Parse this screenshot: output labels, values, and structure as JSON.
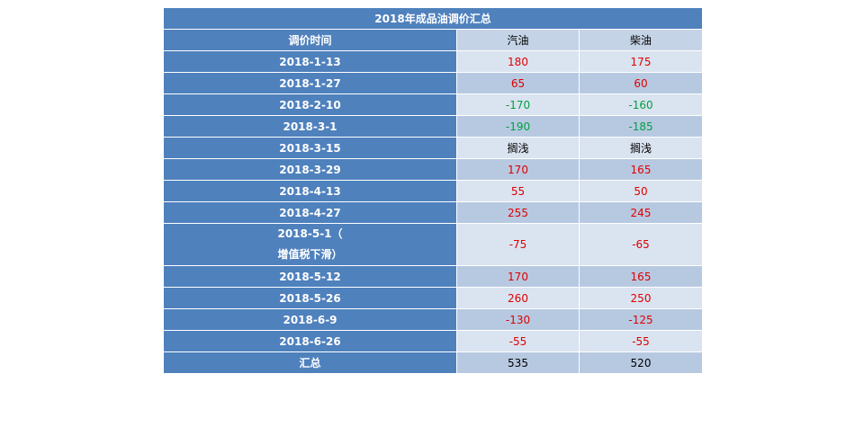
{
  "table": {
    "title": "2018年成品油调价汇总",
    "headers": [
      "调价时间",
      "汽油",
      "柴油"
    ],
    "rows": [
      {
        "date": "2018-1-13",
        "gasoline": "180",
        "diesel": "175",
        "tone": "pos"
      },
      {
        "date": "2018-1-27",
        "gasoline": "65",
        "diesel": "60",
        "tone": "pos"
      },
      {
        "date": "2018-2-10",
        "gasoline": "-170",
        "diesel": "-160",
        "tone": "dn"
      },
      {
        "date": "2018-3-1",
        "gasoline": "-190",
        "diesel": "-185",
        "tone": "dn"
      },
      {
        "date": "2018-3-15",
        "gasoline": "搁浅",
        "diesel": "搁浅",
        "tone": "na"
      },
      {
        "date": "2018-3-29",
        "gasoline": "170",
        "diesel": "165",
        "tone": "pos"
      },
      {
        "date": "2018-4-13",
        "gasoline": "55",
        "diesel": "50",
        "tone": "pos"
      },
      {
        "date": "2018-4-27",
        "gasoline": "255",
        "diesel": "245",
        "tone": "pos"
      },
      {
        "date": "2018-5-1（",
        "date_line2": "增值税下滑）",
        "gasoline": "-75",
        "diesel": "-65",
        "tone": "neg"
      },
      {
        "date": "2018-5-12",
        "gasoline": "170",
        "diesel": "165",
        "tone": "pos"
      },
      {
        "date": "2018-5-26",
        "gasoline": "260",
        "diesel": "250",
        "tone": "pos"
      },
      {
        "date": "2018-6-9",
        "gasoline": "-130",
        "diesel": "-125",
        "tone": "neg"
      },
      {
        "date": "2018-6-26",
        "gasoline": "-55",
        "diesel": "-55",
        "tone": "neg"
      }
    ],
    "total": {
      "label": "汇总",
      "gasoline": "535",
      "diesel": "520"
    }
  },
  "colors": {
    "header_blue": "#4f81bd",
    "cell_light": "#dae3f0",
    "cell_mid": "#b7c9e1",
    "increase_red": "#e00000",
    "decrease_green": "#00a040"
  }
}
